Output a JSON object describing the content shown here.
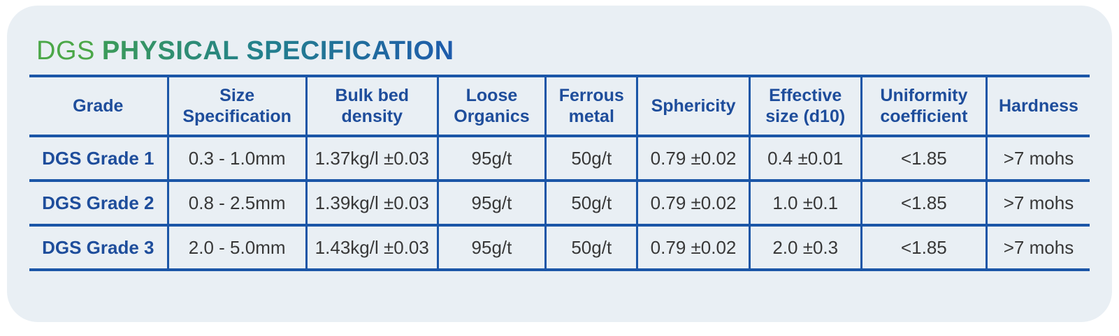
{
  "title": {
    "prefix": "DGS",
    "main": "PHYSICAL SPECIFICATION"
  },
  "colors": {
    "card_background": "#e9eff4",
    "border_blue": "#1b56a7",
    "header_text_blue": "#1e4d9b",
    "title_green": "#4ba748",
    "title_gradient_start": "#3b9b59",
    "title_gradient_mid": "#23808c",
    "title_gradient_end": "#1e5bac",
    "body_text": "#383838"
  },
  "table": {
    "columns": [
      {
        "label": "Grade"
      },
      {
        "label": "Size Specification"
      },
      {
        "label": "Bulk bed density"
      },
      {
        "label": "Loose Organics"
      },
      {
        "label": "Ferrous metal"
      },
      {
        "label": "Sphericity"
      },
      {
        "label": "Effective size (d10)"
      },
      {
        "label": "Uniformity coefficient"
      },
      {
        "label": "Hardness"
      }
    ],
    "rows": [
      {
        "cells": [
          "DGS Grade 1",
          "0.3 - 1.0mm",
          "1.37kg/l ±0.03",
          "95g/t",
          "50g/t",
          "0.79 ±0.02",
          "0.4 ±0.01",
          "<1.85",
          ">7 mohs"
        ]
      },
      {
        "cells": [
          "DGS Grade 2",
          "0.8 - 2.5mm",
          "1.39kg/l ±0.03",
          "95g/t",
          "50g/t",
          "0.79 ±0.02",
          "1.0 ±0.1",
          "<1.85",
          ">7 mohs"
        ]
      },
      {
        "cells": [
          "DGS Grade 3",
          "2.0 - 5.0mm",
          "1.43kg/l ±0.03",
          "95g/t",
          "50g/t",
          "0.79 ±0.02",
          "2.0 ±0.3",
          "<1.85",
          ">7 mohs"
        ]
      }
    ]
  }
}
